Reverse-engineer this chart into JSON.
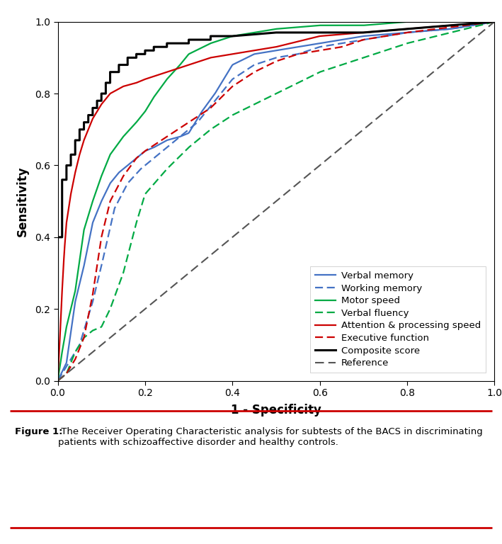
{
  "xlabel": "1 - Specificity",
  "ylabel": "Sensitivity",
  "xlim": [
    0.0,
    1.0
  ],
  "ylim": [
    0.0,
    1.0
  ],
  "xticks": [
    0.0,
    0.2,
    0.4,
    0.6,
    0.8,
    1.0
  ],
  "yticks": [
    0.0,
    0.2,
    0.4,
    0.6,
    0.8,
    1.0
  ],
  "figure_caption_bold": "Figure 1:",
  "figure_caption_normal": " The Receiver Operating Characteristic analysis for subtests of the BACS in discriminating\npatients with schizoaffective disorder and healthy controls.",
  "background_color": "#ffffff",
  "plot_bg_color": "#ffffff",
  "colors": {
    "verbal_memory": "#4472C4",
    "working_memory": "#4472C4",
    "motor_speed": "#00AA44",
    "verbal_fluency": "#00AA44",
    "attention": "#CC0000",
    "executive": "#CC0000",
    "composite": "#000000",
    "reference": "#555555"
  },
  "verbal_memory": {
    "fpr": [
      0.0,
      0.02,
      0.04,
      0.06,
      0.08,
      0.1,
      0.12,
      0.14,
      0.16,
      0.18,
      0.2,
      0.22,
      0.25,
      0.28,
      0.3,
      0.33,
      0.36,
      0.4,
      0.45,
      0.5,
      0.6,
      0.7,
      0.8,
      0.9,
      1.0
    ],
    "tpr": [
      0.0,
      0.05,
      0.22,
      0.32,
      0.44,
      0.5,
      0.55,
      0.58,
      0.6,
      0.62,
      0.64,
      0.65,
      0.67,
      0.68,
      0.69,
      0.75,
      0.8,
      0.88,
      0.91,
      0.92,
      0.94,
      0.96,
      0.97,
      0.98,
      1.0
    ]
  },
  "working_memory": {
    "fpr": [
      0.0,
      0.02,
      0.05,
      0.08,
      0.1,
      0.13,
      0.16,
      0.19,
      0.22,
      0.25,
      0.28,
      0.32,
      0.36,
      0.4,
      0.45,
      0.5,
      0.55,
      0.6,
      0.7,
      0.8,
      0.9,
      1.0
    ],
    "tpr": [
      0.0,
      0.04,
      0.1,
      0.22,
      0.32,
      0.48,
      0.55,
      0.59,
      0.62,
      0.65,
      0.68,
      0.72,
      0.78,
      0.84,
      0.88,
      0.9,
      0.91,
      0.93,
      0.95,
      0.97,
      0.98,
      1.0
    ]
  },
  "motor_speed": {
    "fpr": [
      0.0,
      0.01,
      0.02,
      0.04,
      0.06,
      0.08,
      0.1,
      0.12,
      0.15,
      0.18,
      0.2,
      0.22,
      0.25,
      0.28,
      0.3,
      0.35,
      0.4,
      0.5,
      0.6,
      0.7,
      0.8,
      1.0
    ],
    "tpr": [
      0.0,
      0.08,
      0.15,
      0.25,
      0.42,
      0.5,
      0.57,
      0.63,
      0.68,
      0.72,
      0.75,
      0.79,
      0.84,
      0.88,
      0.91,
      0.94,
      0.96,
      0.98,
      0.99,
      0.99,
      1.0,
      1.0
    ]
  },
  "verbal_fluency": {
    "fpr": [
      0.0,
      0.02,
      0.04,
      0.06,
      0.08,
      0.1,
      0.12,
      0.15,
      0.18,
      0.2,
      0.25,
      0.3,
      0.35,
      0.4,
      0.45,
      0.5,
      0.55,
      0.6,
      0.65,
      0.7,
      0.8,
      1.0
    ],
    "tpr": [
      0.0,
      0.02,
      0.08,
      0.12,
      0.14,
      0.15,
      0.2,
      0.3,
      0.44,
      0.52,
      0.59,
      0.65,
      0.7,
      0.74,
      0.77,
      0.8,
      0.83,
      0.86,
      0.88,
      0.9,
      0.94,
      1.0
    ]
  },
  "attention": {
    "fpr": [
      0.0,
      0.005,
      0.01,
      0.015,
      0.02,
      0.03,
      0.04,
      0.05,
      0.06,
      0.07,
      0.08,
      0.1,
      0.12,
      0.15,
      0.18,
      0.2,
      0.25,
      0.3,
      0.35,
      0.4,
      0.5,
      0.6,
      0.7,
      0.8,
      0.9,
      1.0
    ],
    "tpr": [
      0.0,
      0.12,
      0.25,
      0.36,
      0.44,
      0.52,
      0.58,
      0.63,
      0.67,
      0.7,
      0.73,
      0.77,
      0.8,
      0.82,
      0.83,
      0.84,
      0.86,
      0.88,
      0.9,
      0.91,
      0.93,
      0.96,
      0.97,
      0.98,
      0.99,
      1.0
    ]
  },
  "executive": {
    "fpr": [
      0.0,
      0.02,
      0.04,
      0.06,
      0.08,
      0.1,
      0.12,
      0.15,
      0.18,
      0.2,
      0.25,
      0.3,
      0.35,
      0.4,
      0.45,
      0.5,
      0.55,
      0.6,
      0.65,
      0.7,
      0.8,
      1.0
    ],
    "tpr": [
      0.0,
      0.02,
      0.06,
      0.12,
      0.24,
      0.4,
      0.5,
      0.57,
      0.62,
      0.64,
      0.68,
      0.72,
      0.76,
      0.82,
      0.86,
      0.89,
      0.91,
      0.92,
      0.93,
      0.95,
      0.97,
      1.0
    ]
  },
  "composite_fpr": [
    0.0,
    0.0,
    0.01,
    0.01,
    0.02,
    0.02,
    0.03,
    0.03,
    0.04,
    0.04,
    0.05,
    0.05,
    0.06,
    0.06,
    0.07,
    0.07,
    0.08,
    0.08,
    0.09,
    0.09,
    0.1,
    0.1,
    0.11,
    0.11,
    0.12,
    0.12,
    0.14,
    0.14,
    0.16,
    0.16,
    0.18,
    0.18,
    0.2,
    0.2,
    0.22,
    0.22,
    0.25,
    0.25,
    0.3,
    0.3,
    0.35,
    0.35,
    0.4,
    0.5,
    0.6,
    0.7,
    0.8,
    0.9,
    1.0
  ],
  "composite_tpr": [
    0.0,
    0.4,
    0.4,
    0.56,
    0.56,
    0.6,
    0.6,
    0.63,
    0.63,
    0.67,
    0.67,
    0.7,
    0.7,
    0.72,
    0.72,
    0.74,
    0.74,
    0.76,
    0.76,
    0.78,
    0.78,
    0.8,
    0.8,
    0.83,
    0.83,
    0.86,
    0.86,
    0.88,
    0.88,
    0.9,
    0.9,
    0.91,
    0.91,
    0.92,
    0.92,
    0.93,
    0.93,
    0.94,
    0.94,
    0.95,
    0.95,
    0.96,
    0.96,
    0.97,
    0.97,
    0.97,
    0.98,
    0.99,
    1.0
  ]
}
